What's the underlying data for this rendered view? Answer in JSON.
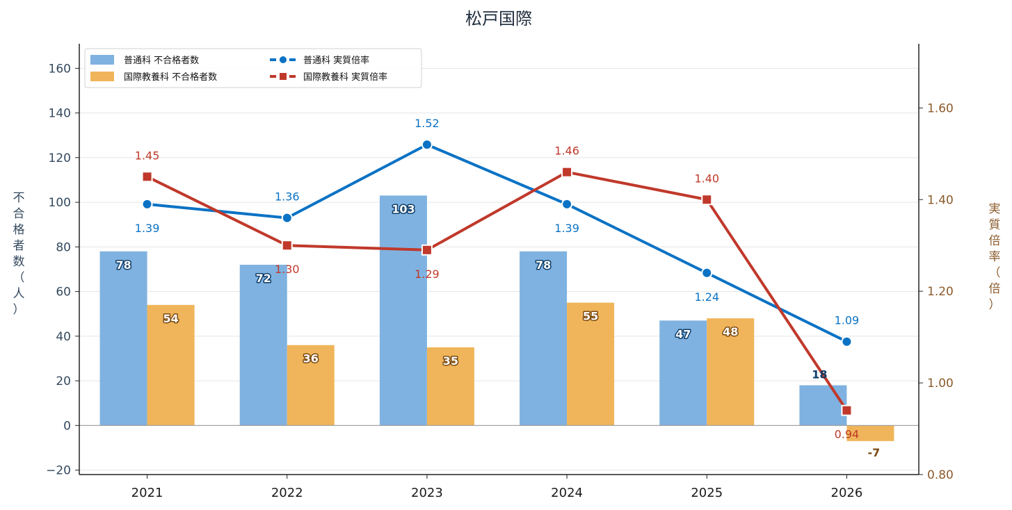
{
  "chart_data": {
    "type": "bar",
    "title": "松戸国際",
    "categories": [
      "2021",
      "2022",
      "2023",
      "2024",
      "2025",
      "2026"
    ],
    "y_left_label": "不合格者数（人）",
    "y_right_label": "実質倍率（倍）",
    "y_left_lim": [
      -22,
      171
    ],
    "y_left_ticks": [
      "−20",
      "0",
      "20",
      "40",
      "60",
      "80",
      "100",
      "120",
      "140",
      "160"
    ],
    "y_right_lim": [
      0.8,
      1.74
    ],
    "y_right_ticks": [
      "0.80",
      "1.00",
      "1.20",
      "1.40",
      "1.60"
    ],
    "grid": true,
    "legend_position": "top-left",
    "series": [
      {
        "name": "普通科 不合格者数",
        "kind": "bar",
        "axis": "left",
        "color": "#7fb2e0",
        "label_color": "#0d3b66",
        "values": [
          78,
          72,
          103,
          78,
          47,
          18
        ]
      },
      {
        "name": "国際教養科 不合格者数",
        "kind": "bar",
        "axis": "left",
        "color": "#f0b55a",
        "label_color": "#7a4a12",
        "values": [
          54,
          36,
          35,
          55,
          48,
          -7
        ]
      },
      {
        "name": "普通科 実質倍率",
        "kind": "line",
        "axis": "right",
        "color": "#0a72c4",
        "marker": "circle",
        "values": [
          1.39,
          1.36,
          1.52,
          1.39,
          1.24,
          1.09
        ],
        "labels": [
          "1.39",
          "1.36",
          "1.52",
          "1.39",
          "1.24",
          "1.09"
        ]
      },
      {
        "name": "国際教養科 実質倍率",
        "kind": "line",
        "axis": "right",
        "color": "#c0392b",
        "marker": "square",
        "values": [
          1.45,
          1.3,
          1.29,
          1.46,
          1.4,
          0.94
        ],
        "labels": [
          "1.45",
          "1.30",
          "1.29",
          "1.46",
          "1.40",
          "0.94"
        ]
      }
    ]
  }
}
